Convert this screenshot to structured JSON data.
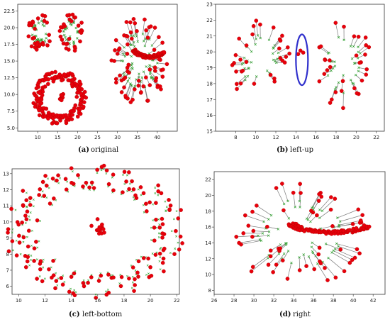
{
  "colors": {
    "point": "#e8000b",
    "point_edge": "#b30000",
    "arrow": "#7a7a7a",
    "centroid": "#2ca02c",
    "ellipse": "#3030cc"
  },
  "chart_data": [
    {
      "type": "scatter",
      "panel": "a",
      "caption_label": "(a)",
      "caption_text": "original",
      "xlim": [
        5,
        45
      ],
      "ylim": [
        4.5,
        23.5
      ],
      "xticks": [
        "10",
        "15",
        "20",
        "25",
        "30",
        "35",
        "40"
      ],
      "yticks": [
        "5.0",
        "7.5",
        "10.0",
        "12.5",
        "15.0",
        "17.5",
        "20.0",
        "22.5"
      ],
      "clusters": [
        {
          "shape": "star",
          "cx": 10.5,
          "cy": 19.3,
          "r": 3.0,
          "n": 30
        },
        {
          "shape": "star",
          "cx": 18.5,
          "cy": 19.3,
          "r": 3.0,
          "n": 30
        },
        {
          "shape": "ring",
          "cx": 15.5,
          "cy": 9.5,
          "rx": 5.5,
          "ry": 3.3,
          "w": 1.2,
          "n": 160
        },
        {
          "shape": "blob",
          "cx": 16.0,
          "cy": 9.6,
          "r": 0.7,
          "n": 14
        },
        {
          "shape": "star",
          "cx": 35.5,
          "cy": 15.0,
          "r": 7.0,
          "n": 70
        },
        {
          "shape": "arc",
          "cx": 38.0,
          "cy": 15.0,
          "r": 4.5,
          "a0": 200,
          "a1": 330,
          "w": 1.2,
          "n": 90
        }
      ]
    },
    {
      "type": "scatter",
      "panel": "b",
      "caption_label": "(b)",
      "caption_text": "left-up",
      "xlim": [
        6,
        22.8
      ],
      "ylim": [
        15,
        23
      ],
      "xticks": [
        "8",
        "10",
        "12",
        "14",
        "16",
        "18",
        "20",
        "22"
      ],
      "yticks": [
        "15",
        "16",
        "17",
        "18",
        "19",
        "20",
        "21",
        "22",
        "23"
      ],
      "clusters": [
        {
          "shape": "star",
          "cx": 10.5,
          "cy": 19.3,
          "r": 3.0,
          "n": 32
        },
        {
          "shape": "star",
          "cx": 18.8,
          "cy": 19.2,
          "r": 3.0,
          "n": 32
        },
        {
          "shape": "blob",
          "cx": 14.6,
          "cy": 19.5,
          "r": 0.8,
          "n": 3
        }
      ],
      "ellipse": {
        "cx": 14.6,
        "cy": 19.5,
        "rx": 0.6,
        "ry": 1.6
      }
    },
    {
      "type": "scatter",
      "panel": "c",
      "caption_label": "(c)",
      "caption_text": "left-bottom",
      "xlim": [
        9.5,
        22.2
      ],
      "ylim": [
        5.5,
        13.3
      ],
      "xticks": [
        "10",
        "12",
        "14",
        "16",
        "18",
        "20",
        "22"
      ],
      "yticks": [
        "6",
        "7",
        "8",
        "9",
        "10",
        "11",
        "12",
        "13"
      ],
      "clusters": [
        {
          "shape": "ring",
          "cx": 15.8,
          "cy": 9.4,
          "rx": 5.7,
          "ry": 3.4,
          "w": 1.3,
          "n": 150
        },
        {
          "shape": "blob",
          "cx": 16.0,
          "cy": 9.5,
          "r": 0.7,
          "n": 14
        }
      ]
    },
    {
      "type": "scatter",
      "panel": "d",
      "caption_label": "(d)",
      "caption_text": "right",
      "xlim": [
        26,
        43.2
      ],
      "ylim": [
        7.5,
        23
      ],
      "xticks": [
        "26",
        "28",
        "30",
        "32",
        "34",
        "36",
        "38",
        "40",
        "42"
      ],
      "yticks": [
        "8",
        "10",
        "12",
        "14",
        "16",
        "18",
        "20",
        "22"
      ],
      "clusters": [
        {
          "shape": "star",
          "cx": 34.5,
          "cy": 15.2,
          "r": 7.0,
          "n": 64
        },
        {
          "shape": "arc",
          "cx": 37.8,
          "cy": 14.8,
          "r": 4.8,
          "a0": 200,
          "a1": 330,
          "w": 1.1,
          "n": 100
        }
      ]
    }
  ]
}
